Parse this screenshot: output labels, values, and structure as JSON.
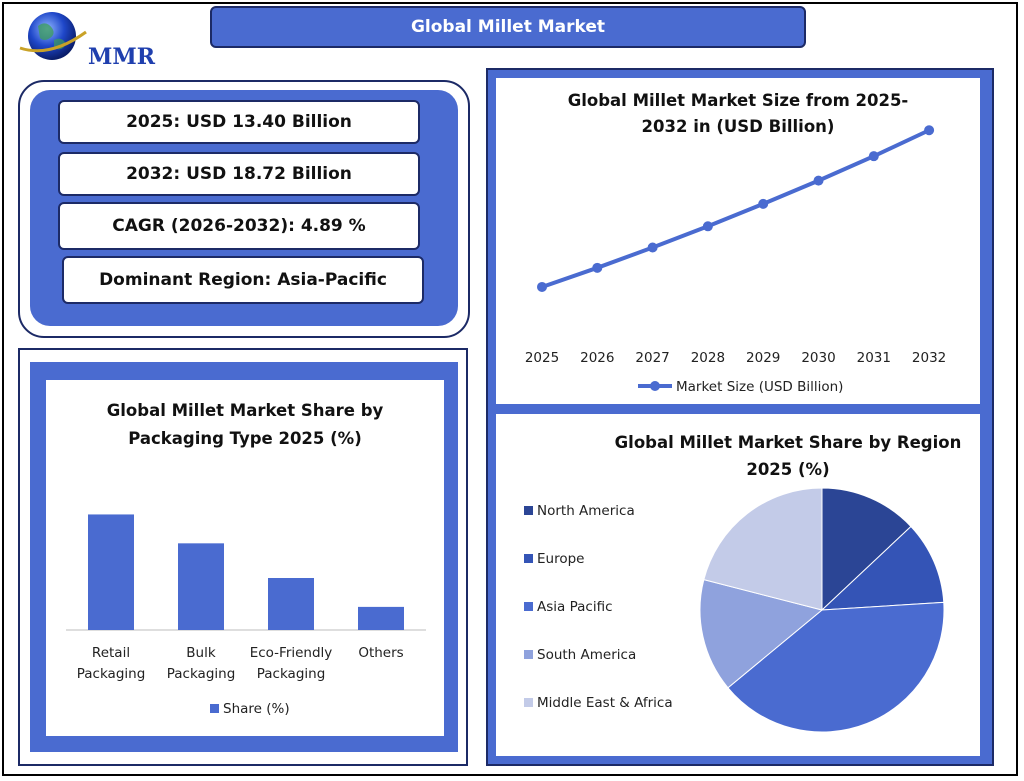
{
  "header": {
    "title": "Global Millet Market",
    "logo_text": "MMR"
  },
  "stats": [
    "2025: USD 13.40 Billion",
    "2032: USD 18.72  Billion",
    "CAGR (2026-2032): 4.89 %",
    "Dominant Region: Asia-Pacific"
  ],
  "colors": {
    "accent": "#4a6bd0",
    "border": "#1c2a66",
    "bar": "#4a6bd0",
    "line": "#4a6bd0"
  },
  "chart_data": [
    {
      "type": "line",
      "title_lines": [
        "Global Millet Market Size from 2025-",
        "2032 in (USD Billion)"
      ],
      "x": [
        "2025",
        "2026",
        "2027",
        "2028",
        "2029",
        "2030",
        "2031",
        "2032"
      ],
      "series": [
        {
          "name": "Market Size (USD Billion)",
          "values": [
            13.4,
            14.05,
            14.74,
            15.46,
            16.22,
            17.01,
            17.84,
            18.72
          ]
        }
      ],
      "grid": false,
      "legend": "bottom"
    },
    {
      "type": "bar",
      "title_lines": [
        "Global Millet Market Share by",
        "Packaging Type 2025 (%)"
      ],
      "categories": [
        [
          "Retail",
          "Packaging"
        ],
        [
          "Bulk",
          "Packaging"
        ],
        [
          "Eco-Friendly",
          "Packaging"
        ],
        [
          "Others"
        ]
      ],
      "series": [
        {
          "name": "Share (%)",
          "values": [
            40,
            30,
            18,
            8
          ]
        }
      ],
      "ylim": [
        0,
        45
      ],
      "legend": "bottom"
    },
    {
      "type": "pie",
      "title_lines": [
        "Global Millet Market Share by Region",
        "2025 (%)"
      ],
      "labels": [
        "North America",
        "Europe",
        "Asia Pacific",
        "South America",
        "Middle East & Africa"
      ],
      "values": [
        13,
        11,
        40,
        15,
        21
      ],
      "colors": [
        "#2b4595",
        "#3454b6",
        "#4a6bd0",
        "#8fa2dd",
        "#c3cbe8"
      ],
      "legend": "left"
    }
  ]
}
